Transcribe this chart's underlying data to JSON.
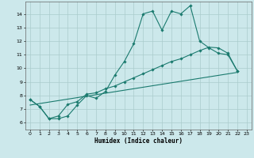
{
  "title": "",
  "xlabel": "Humidex (Indice chaleur)",
  "bg_color": "#cce8eb",
  "grid_color": "#aacccc",
  "line_color": "#1a7a6e",
  "xlim": [
    -0.5,
    23.5
  ],
  "ylim": [
    5.5,
    14.9
  ],
  "yticks": [
    6,
    7,
    8,
    9,
    10,
    11,
    12,
    13,
    14
  ],
  "xticks": [
    0,
    1,
    2,
    3,
    4,
    5,
    6,
    7,
    8,
    9,
    10,
    11,
    12,
    13,
    14,
    15,
    16,
    17,
    18,
    19,
    20,
    21,
    22,
    23
  ],
  "series1_x": [
    0,
    1,
    2,
    3,
    4,
    5,
    6,
    7,
    8,
    9,
    10,
    11,
    12,
    13,
    14,
    15,
    16,
    17,
    18,
    19,
    20,
    21,
    22
  ],
  "series1_y": [
    7.7,
    7.2,
    6.3,
    6.3,
    6.5,
    7.3,
    8.0,
    7.8,
    8.3,
    9.5,
    10.5,
    11.8,
    14.0,
    14.2,
    12.8,
    14.2,
    14.0,
    14.6,
    12.0,
    11.5,
    11.1,
    11.0,
    9.8
  ],
  "series2_x": [
    0,
    1,
    2,
    3,
    4,
    5,
    6,
    7,
    8,
    9,
    10,
    11,
    12,
    13,
    14,
    15,
    16,
    17,
    18,
    19,
    20,
    21,
    22
  ],
  "series2_y": [
    7.7,
    7.2,
    6.3,
    6.5,
    7.35,
    7.55,
    8.1,
    8.2,
    8.5,
    8.7,
    9.0,
    9.3,
    9.6,
    9.9,
    10.2,
    10.5,
    10.7,
    11.0,
    11.3,
    11.55,
    11.5,
    11.1,
    9.8
  ],
  "series3_x": [
    0,
    22
  ],
  "series3_y": [
    7.3,
    9.7
  ]
}
